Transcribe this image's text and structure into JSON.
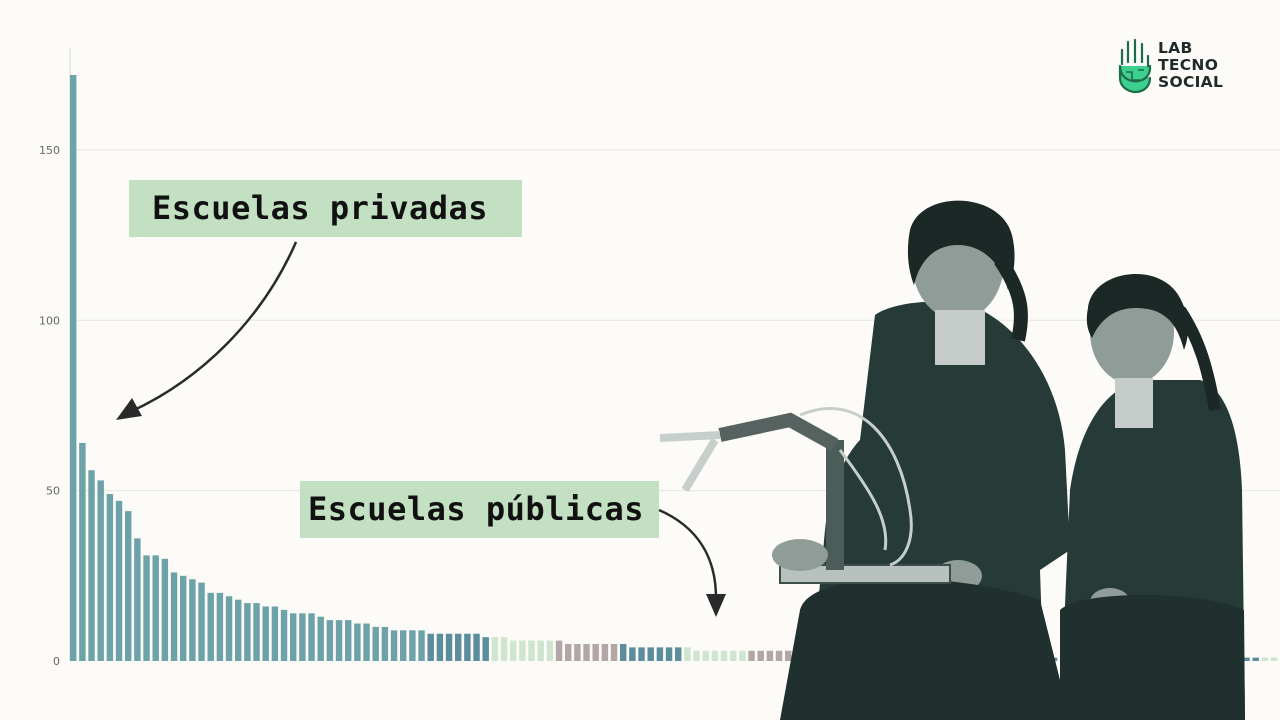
{
  "logo": {
    "line1": "LAB",
    "line2": "TECNO",
    "line3": "SOCIAL"
  },
  "annotations": {
    "private": "Escuelas privadas",
    "public": "Escuelas públicas"
  },
  "colors": {
    "private_bar": "#6da3a8",
    "public_bar_dark": "#5c8d9c",
    "public_bar_light": "#cfe5cf",
    "public_bar_grey": "#b2a6a6",
    "label_bg": "#c3e1c2",
    "photo_tint": "#263a38",
    "logo_green": "#3ccf8e"
  },
  "chart_data": {
    "type": "bar",
    "title": "",
    "xlabel": "",
    "ylabel": "",
    "ylim": [
      0,
      172
    ],
    "yticks": [
      0,
      50,
      100,
      150
    ],
    "grid": true,
    "series": [
      {
        "values": [
          172,
          64,
          56,
          53,
          49,
          47,
          44,
          36,
          31,
          31,
          30,
          26,
          25,
          24,
          23,
          20,
          20,
          19,
          18,
          17,
          17,
          16,
          16,
          15,
          14,
          14,
          14,
          13,
          12,
          12,
          12,
          11,
          11,
          10,
          10,
          9,
          9,
          9,
          9
        ]
      },
      {
        "values": [
          8,
          8,
          8,
          8,
          8,
          8,
          7,
          7,
          7,
          6,
          6,
          6,
          6,
          6,
          6,
          5,
          5,
          5,
          5,
          5,
          5,
          5,
          4,
          4,
          4,
          4,
          4,
          4,
          4,
          3,
          3,
          3,
          3,
          3,
          3,
          3,
          3,
          3,
          3,
          3,
          3,
          3,
          3,
          3,
          3,
          3,
          3,
          2,
          2,
          2,
          2,
          2,
          2,
          2,
          2,
          2,
          2,
          2,
          2,
          2,
          2,
          2,
          2,
          2,
          2,
          2,
          1,
          1,
          1,
          1,
          1,
          1,
          1,
          1,
          1,
          1,
          1,
          1,
          1,
          1,
          1,
          1,
          1,
          1,
          1,
          1,
          1,
          1,
          1,
          1,
          1,
          1,
          1
        ]
      }
    ]
  }
}
